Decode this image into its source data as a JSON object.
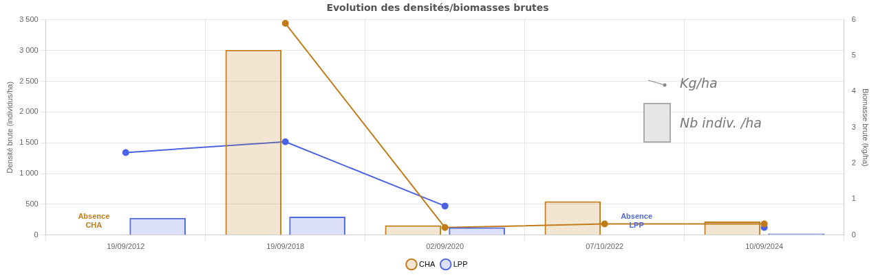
{
  "chart_data": {
    "type": "bar",
    "title": "Evolution des densités/biomasses brutes",
    "xlabel": null,
    "ylabel": "Densité brute (individus/ha)",
    "y2label": "Biomasse brute (kg/ha)",
    "categories": [
      "19/09/2012",
      "19/09/2018",
      "02/09/2020",
      "07/10/2022",
      "10/09/2024"
    ],
    "series": [
      {
        "name": "CHA",
        "color": "#c07c1a",
        "values": [
          null,
          3010,
          160,
          550,
          220
        ]
      },
      {
        "name": "LPP",
        "color": "#5068e0",
        "values": [
          280,
          300,
          125,
          null,
          25
        ]
      },
      {
        "type": "line",
        "axis": "y2",
        "color": "#c07c1a",
        "values": [
          null,
          5.9,
          0.21,
          0.31,
          0.31
        ]
      },
      {
        "type": "line",
        "axis": "y2",
        "color": "#4a62e6",
        "values": [
          2.3,
          2.6,
          0.81,
          null,
          0.21
        ]
      }
    ],
    "ylim": [
      0,
      3500
    ],
    "yticks": [
      0,
      500,
      {
        "value": 1000,
        "label": "1 000"
      },
      {
        "value": 1500,
        "label": "1 500"
      },
      {
        "value": 2000,
        "label": "2 000"
      },
      {
        "value": 2500,
        "label": "2 500"
      },
      {
        "value": 3000,
        "label": "3 000"
      },
      {
        "value": 3500,
        "label": "3 500"
      }
    ],
    "y2lim": [
      0,
      6
    ],
    "y2ticks": [
      0,
      1,
      2,
      3,
      4,
      5,
      6
    ],
    "grid": true,
    "legend": "bottom",
    "marker": "circle",
    "line_style": "solid",
    "annotations": [
      "Kg/ha",
      "Nb indiv. /ha",
      "Absence CHA",
      "Absence LPP"
    ]
  }
}
